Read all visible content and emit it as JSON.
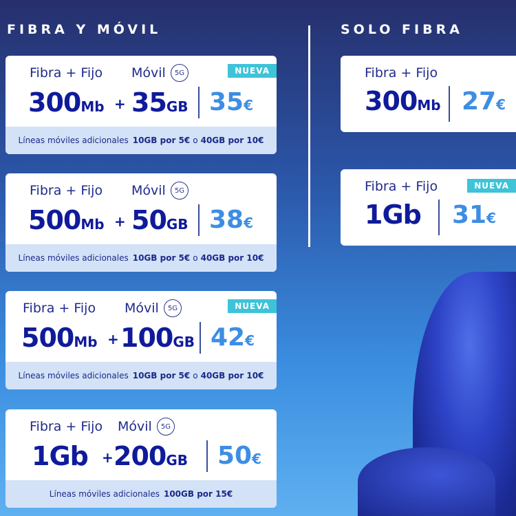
{
  "sections": {
    "combo_title": "FIBRA Y MÓVIL",
    "fiber_title": "SOLO FIBRA"
  },
  "combo_cards": [
    {
      "fiber_label": "Fibra + Fijo",
      "mobile_label": "Móvil",
      "fiveg": "5G",
      "badge": "NUEVA",
      "speed": "300",
      "speed_unit": "Mb",
      "data": "35",
      "data_unit": "GB",
      "price": "35",
      "currency": "€",
      "extra_label": "Líneas móviles adicionales",
      "extra_a": "10GB por 5€",
      "extra_or": "o",
      "extra_b": "40GB por 10€"
    },
    {
      "fiber_label": "Fibra + Fijo",
      "mobile_label": "Móvil",
      "fiveg": "5G",
      "speed": "500",
      "speed_unit": "Mb",
      "data": "50",
      "data_unit": "GB",
      "price": "38",
      "currency": "€",
      "extra_label": "Líneas móviles adicionales",
      "extra_a": "10GB por 5€",
      "extra_or": "o",
      "extra_b": "40GB por 10€"
    },
    {
      "fiber_label": "Fibra + Fijo",
      "mobile_label": "Móvil",
      "fiveg": "5G",
      "badge": "NUEVA",
      "speed": "500",
      "speed_unit": "Mb",
      "data": "100",
      "data_unit": "GB",
      "price": "42",
      "currency": "€",
      "extra_label": "Líneas móviles adicionales",
      "extra_a": "10GB por 5€",
      "extra_or": "o",
      "extra_b": "40GB por 10€"
    },
    {
      "fiber_label": "Fibra + Fijo",
      "mobile_label": "Móvil",
      "fiveg": "5G",
      "speed": "1Gb",
      "speed_unit": "",
      "data": "200",
      "data_unit": "GB",
      "price": "50",
      "currency": "€",
      "extra_label": "Líneas móviles adicionales",
      "extra_a": "100GB por 15€"
    }
  ],
  "fiber_cards": [
    {
      "fiber_label": "Fibra + Fijo",
      "speed": "300",
      "speed_unit": "Mb",
      "price": "27",
      "currency": "€"
    },
    {
      "fiber_label": "Fibra + Fijo",
      "badge": "NUEVA",
      "speed": "1Gb",
      "speed_unit": "",
      "price": "31",
      "currency": "€"
    }
  ],
  "plus": "+",
  "colors": {
    "brand": "#0f1b9a",
    "price": "#3d8ee3",
    "badge": "#3ec3d8"
  }
}
